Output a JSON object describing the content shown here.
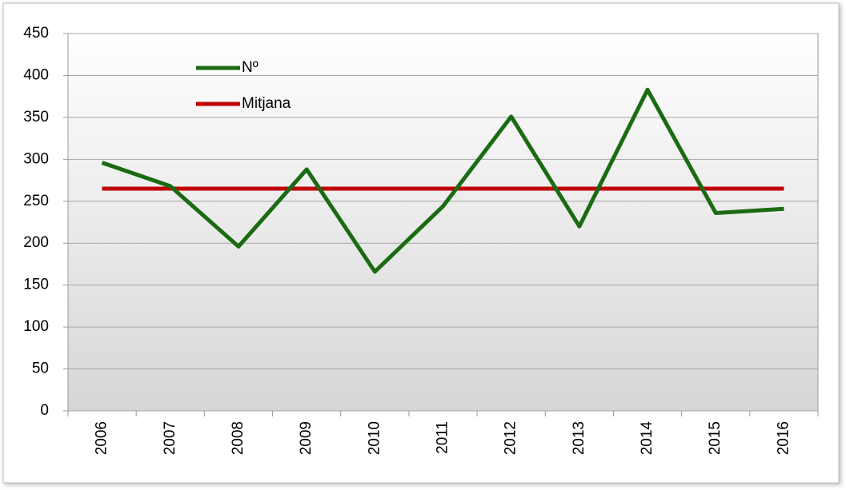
{
  "chart_data": {
    "type": "line",
    "categories": [
      "2006",
      "2007",
      "2008",
      "2009",
      "2010",
      "2011",
      "2012",
      "2013",
      "2014",
      "2015",
      "2016"
    ],
    "series": [
      {
        "name": "Nº",
        "color": "#1a6b12",
        "values": [
          296,
          268,
          196,
          288,
          166,
          244,
          351,
          220,
          383,
          236,
          241
        ]
      },
      {
        "name": "Mitjana",
        "color": "#c00000",
        "values": [
          265,
          265,
          265,
          265,
          265,
          265,
          265,
          265,
          265,
          265,
          265
        ]
      }
    ],
    "ylim": [
      0,
      450
    ],
    "yticks": [
      0,
      50,
      100,
      150,
      200,
      250,
      300,
      350,
      400,
      450
    ],
    "grid": true,
    "legend": "top-left"
  }
}
